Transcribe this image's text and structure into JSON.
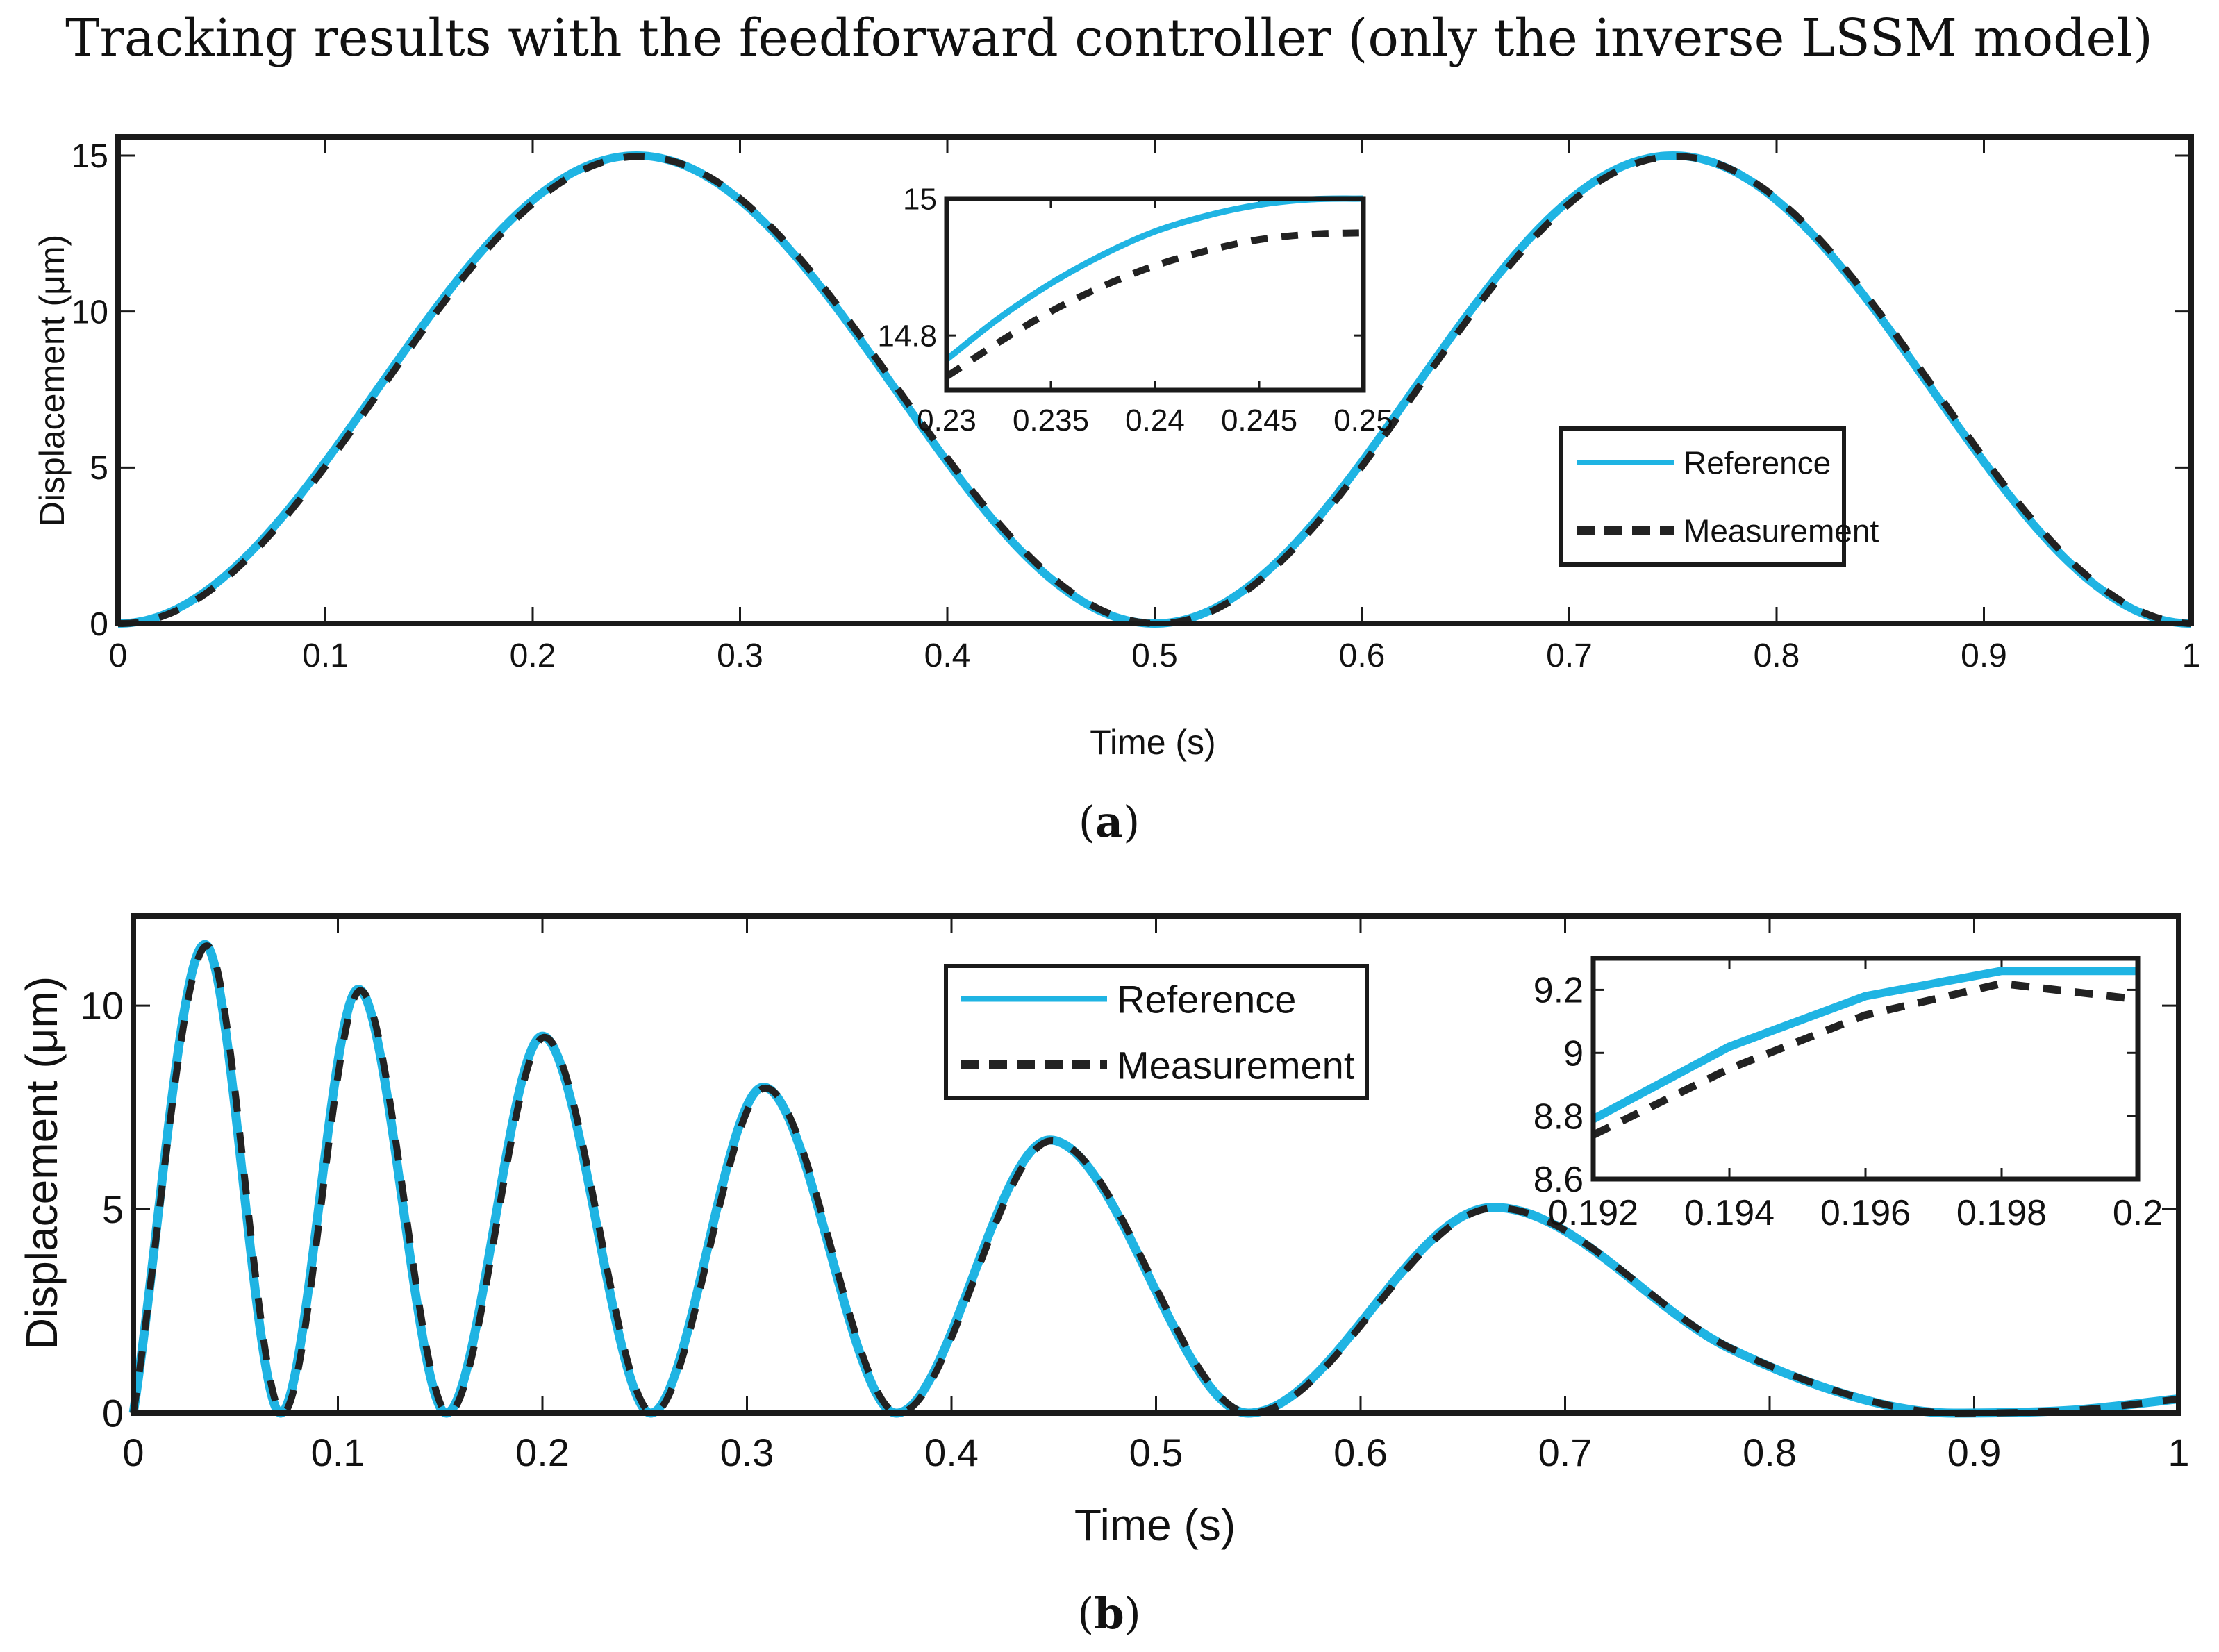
{
  "figure": {
    "title": "Tracking results with the feedforward controller (only the inverse LSSM model)",
    "colors": {
      "reference": "#1fb4e3",
      "measurement": "#222222",
      "axes": "#1a1a1a"
    }
  },
  "chart_data": [
    {
      "id": "a",
      "type": "line",
      "caption_paren_open": "(",
      "caption_letter": "a",
      "caption_paren_close": ")",
      "xlabel": "Time (s)",
      "ylabel": "Displacement (μm)",
      "xlim": [
        0,
        1
      ],
      "ylim": [
        0,
        15.6
      ],
      "xticks": [
        0,
        0.1,
        0.2,
        0.3,
        0.4,
        0.5,
        0.6,
        0.7,
        0.8,
        0.9,
        1
      ],
      "xtick_labels": [
        "0",
        "0.1",
        "0.2",
        "0.3",
        "0.4",
        "0.5",
        "0.6",
        "0.7",
        "0.8",
        "0.9",
        "1"
      ],
      "yticks": [
        0,
        5,
        10,
        15
      ],
      "ytick_labels": [
        "0",
        "5",
        "10",
        "15"
      ],
      "signal": "y = 7.5 * (1 - cos(4*pi*t))",
      "series": [
        {
          "name": "Reference",
          "style": "solid",
          "x": [
            0,
            0.025,
            0.05,
            0.075,
            0.1,
            0.125,
            0.15,
            0.175,
            0.2,
            0.225,
            0.25,
            0.275,
            0.3,
            0.325,
            0.35,
            0.375,
            0.4,
            0.425,
            0.45,
            0.475,
            0.5,
            0.525,
            0.55,
            0.575,
            0.6,
            0.625,
            0.65,
            0.675,
            0.7,
            0.725,
            0.75,
            0.775,
            0.8,
            0.825,
            0.85,
            0.875,
            0.9,
            0.925,
            0.95,
            0.975,
            1
          ],
          "y": [
            0,
            0.36,
            1.43,
            3.1,
            5.18,
            7.5,
            9.82,
            11.9,
            13.57,
            14.64,
            15,
            14.64,
            13.57,
            11.9,
            9.82,
            7.5,
            5.18,
            3.1,
            1.43,
            0.36,
            0,
            0.36,
            1.43,
            3.1,
            5.18,
            7.5,
            9.82,
            11.9,
            13.57,
            14.64,
            15,
            14.64,
            13.57,
            11.9,
            9.82,
            7.5,
            5.18,
            3.1,
            1.43,
            0.36,
            0
          ]
        },
        {
          "name": "Measurement",
          "style": "dashed",
          "x": [
            0,
            0.025,
            0.05,
            0.075,
            0.1,
            0.125,
            0.15,
            0.175,
            0.2,
            0.225,
            0.25,
            0.275,
            0.3,
            0.325,
            0.35,
            0.375,
            0.4,
            0.425,
            0.45,
            0.475,
            0.5,
            0.525,
            0.55,
            0.575,
            0.6,
            0.625,
            0.65,
            0.675,
            0.7,
            0.725,
            0.75,
            0.775,
            0.8,
            0.825,
            0.85,
            0.875,
            0.9,
            0.925,
            0.95,
            0.975,
            1
          ],
          "y": [
            0,
            0.33,
            1.39,
            3.05,
            5.13,
            7.45,
            9.78,
            11.86,
            13.53,
            14.6,
            14.97,
            14.63,
            13.58,
            11.93,
            9.85,
            7.54,
            5.22,
            3.13,
            1.46,
            0.38,
            0.01,
            0.34,
            1.4,
            3.07,
            5.15,
            7.47,
            9.79,
            11.87,
            13.55,
            14.61,
            14.97,
            14.63,
            13.58,
            11.93,
            9.85,
            7.54,
            5.22,
            3.13,
            1.46,
            0.38,
            0.02
          ]
        }
      ],
      "inset": {
        "xlim": [
          0.23,
          0.25
        ],
        "ylim": [
          14.72,
          15
        ],
        "xticks": [
          0.23,
          0.235,
          0.24,
          0.245,
          0.25
        ],
        "xtick_labels": [
          "0.23",
          "0.235",
          "0.24",
          "0.245",
          "0.25"
        ],
        "yticks": [
          14.8,
          15
        ],
        "ytick_labels": [
          "14.8",
          "15"
        ],
        "series": [
          {
            "name": "Reference",
            "style": "solid",
            "x": [
              0.23,
              0.2325,
              0.235,
              0.2375,
              0.24,
              0.2425,
              0.245,
              0.2475,
              0.25
            ],
            "y": [
              14.765,
              14.825,
              14.876,
              14.918,
              14.952,
              14.975,
              14.991,
              14.999,
              15.0
            ]
          },
          {
            "name": "Measurement",
            "style": "dashed",
            "x": [
              0.23,
              0.2325,
              0.235,
              0.2375,
              0.24,
              0.2425,
              0.245,
              0.2475,
              0.25
            ],
            "y": [
              14.74,
              14.79,
              14.835,
              14.872,
              14.902,
              14.924,
              14.94,
              14.948,
              14.95
            ]
          }
        ]
      },
      "legend": {
        "position": "right-lower",
        "entries": [
          "Reference",
          "Measurement"
        ]
      }
    },
    {
      "id": "b",
      "type": "line",
      "caption_paren_open": "(",
      "caption_letter": "b",
      "caption_paren_close": ")",
      "xlabel": "Time (s)",
      "ylabel": "Displacement (μm)",
      "xlim": [
        0,
        1
      ],
      "ylim": [
        0,
        12.2
      ],
      "xticks": [
        0,
        0.1,
        0.2,
        0.3,
        0.4,
        0.5,
        0.6,
        0.7,
        0.8,
        0.9,
        1
      ],
      "xtick_labels": [
        "0",
        "0.1",
        "0.2",
        "0.3",
        "0.4",
        "0.5",
        "0.6",
        "0.7",
        "0.8",
        "0.9",
        "1"
      ],
      "yticks": [
        0,
        5,
        10
      ],
      "ytick_labels": [
        "0",
        "5",
        "10"
      ],
      "signal": "decaying-amplitude chirp: peaks shrink and widen over time",
      "peaks": [
        {
          "t": 0.035,
          "y": 11.5
        },
        {
          "t": 0.11,
          "y": 10.4
        },
        {
          "t": 0.2,
          "y": 9.25
        },
        {
          "t": 0.308,
          "y": 8.0
        },
        {
          "t": 0.448,
          "y": 6.7
        },
        {
          "t": 0.665,
          "y": 5.05
        }
      ],
      "troughs": [
        {
          "t": 0,
          "y": 0
        },
        {
          "t": 0.072,
          "y": 0
        },
        {
          "t": 0.153,
          "y": 0
        },
        {
          "t": 0.253,
          "y": 0
        },
        {
          "t": 0.373,
          "y": 0
        },
        {
          "t": 0.545,
          "y": 0
        },
        {
          "t": 0.89,
          "y": 0
        }
      ],
      "tail": [
        {
          "t": 0.78,
          "y": 1.6
        },
        {
          "t": 0.85,
          "y": 0.28
        },
        {
          "t": 0.95,
          "y": 0.08
        },
        {
          "t": 1.0,
          "y": 0.35
        }
      ],
      "series": [
        {
          "name": "Reference",
          "style": "solid"
        },
        {
          "name": "Measurement",
          "style": "dashed"
        }
      ],
      "inset": {
        "xlim": [
          0.192,
          0.2
        ],
        "ylim": [
          8.6,
          9.3
        ],
        "xticks": [
          0.192,
          0.194,
          0.196,
          0.198,
          0.2
        ],
        "xtick_labels": [
          "0.192",
          "0.194",
          "0.196",
          "0.198",
          "0.2"
        ],
        "yticks": [
          8.6,
          8.8,
          9,
          9.2
        ],
        "ytick_labels": [
          "8.6",
          "8.8",
          "9",
          "9.2"
        ],
        "series": [
          {
            "name": "Reference",
            "style": "solid",
            "x": [
              0.192,
              0.194,
              0.196,
              0.198,
              0.2
            ],
            "y": [
              8.79,
              9.02,
              9.18,
              9.26,
              9.26
            ]
          },
          {
            "name": "Measurement",
            "style": "dashed",
            "x": [
              0.192,
              0.194,
              0.196,
              0.198,
              0.2
            ],
            "y": [
              8.74,
              8.95,
              9.12,
              9.22,
              9.17
            ]
          }
        ]
      },
      "legend": {
        "position": "top-center",
        "entries": [
          "Reference",
          "Measurement"
        ]
      }
    }
  ]
}
